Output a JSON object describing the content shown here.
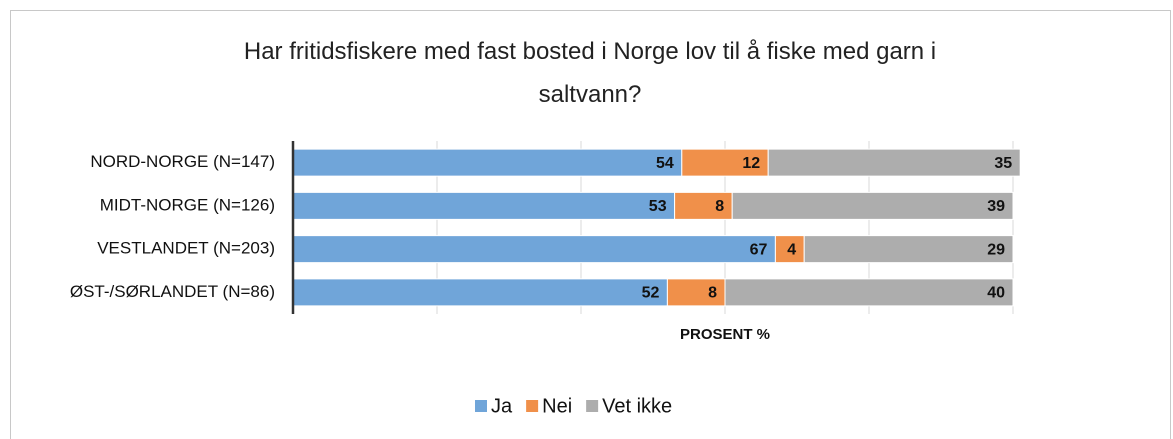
{
  "chart_data": {
    "type": "stacked_bar_horizontal",
    "title": "Har fritidsfiskere med fast bosted i Norge lov til å fiske med garn i saltvann?",
    "x_label": "PROSENT %",
    "categories": [
      "NORD-NORGE (N=147)",
      "MIDT-NORGE (N=126)",
      "VESTLANDET (N=203)",
      "ØST-/SØRLANDET (N=86)"
    ],
    "series": [
      {
        "name": "Ja",
        "color": "#70a5d9",
        "values": [
          54,
          53,
          67,
          52
        ]
      },
      {
        "name": "Nei",
        "color": "#f0904a",
        "values": [
          12,
          8,
          4,
          8
        ]
      },
      {
        "name": "Vet ikke",
        "color": "#adadad",
        "values": [
          35,
          39,
          29,
          40
        ]
      }
    ],
    "xlim": [
      0,
      100
    ],
    "xticks": [
      0,
      20,
      40,
      60,
      80,
      100
    ],
    "grid": true,
    "legend": "bottom"
  }
}
